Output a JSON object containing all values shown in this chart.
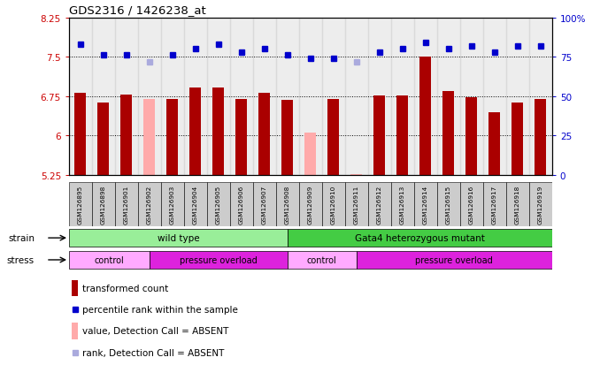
{
  "title": "GDS2316 / 1426238_at",
  "samples": [
    "GSM126895",
    "GSM126898",
    "GSM126901",
    "GSM126902",
    "GSM126903",
    "GSM126904",
    "GSM126905",
    "GSM126906",
    "GSM126907",
    "GSM126908",
    "GSM126909",
    "GSM126910",
    "GSM126911",
    "GSM126912",
    "GSM126913",
    "GSM126914",
    "GSM126915",
    "GSM126916",
    "GSM126917",
    "GSM126918",
    "GSM126919"
  ],
  "bar_values": [
    6.82,
    6.63,
    6.78,
    6.7,
    6.7,
    6.92,
    6.92,
    6.7,
    6.82,
    6.68,
    6.05,
    6.7,
    5.27,
    6.77,
    6.77,
    7.5,
    6.85,
    6.72,
    6.44,
    6.62,
    6.7
  ],
  "bar_absent": [
    false,
    false,
    false,
    true,
    false,
    false,
    false,
    false,
    false,
    false,
    true,
    false,
    true,
    false,
    false,
    false,
    false,
    false,
    false,
    false,
    false
  ],
  "rank_values": [
    83,
    76,
    76,
    72,
    76,
    80,
    83,
    78,
    80,
    76,
    74,
    74,
    72,
    78,
    80,
    84,
    80,
    82,
    78,
    82,
    82
  ],
  "rank_absent": [
    false,
    false,
    false,
    true,
    false,
    false,
    false,
    false,
    false,
    false,
    false,
    false,
    true,
    false,
    false,
    false,
    false,
    false,
    false,
    false,
    false
  ],
  "ylim_left": [
    5.25,
    8.25
  ],
  "ylim_right": [
    0,
    100
  ],
  "yticks_left": [
    5.25,
    6.0,
    6.75,
    7.5,
    8.25
  ],
  "yticks_left_labels": [
    "5.25",
    "6",
    "6.75",
    "7.5",
    "8.25"
  ],
  "yticks_right": [
    0,
    25,
    50,
    75,
    100
  ],
  "yticks_right_labels": [
    "0",
    "25",
    "50",
    "75",
    "100%"
  ],
  "hlines": [
    6.0,
    6.75,
    7.5
  ],
  "bar_color_normal": "#aa0000",
  "bar_color_absent": "#ffaaaa",
  "rank_color_normal": "#0000cc",
  "rank_color_absent": "#aaaadd",
  "bg_color": "#ffffff",
  "strain_wt_color": "#99ee99",
  "strain_mut_color": "#44cc44",
  "stress_ctrl_color": "#ffaaff",
  "stress_po_color": "#dd22dd",
  "legend_items": [
    {
      "label": "transformed count",
      "color": "#aa0000",
      "type": "bar"
    },
    {
      "label": "percentile rank within the sample",
      "color": "#0000cc",
      "type": "marker"
    },
    {
      "label": "value, Detection Call = ABSENT",
      "color": "#ffaaaa",
      "type": "bar"
    },
    {
      "label": "rank, Detection Call = ABSENT",
      "color": "#aaaadd",
      "type": "marker"
    }
  ],
  "sample_bg_color": "#cccccc",
  "strain_wt_label": "wild type",
  "strain_mut_label": "Gata4 heterozygous mutant",
  "stress_ctrl_label": "control",
  "stress_po_label": "pressure overload"
}
